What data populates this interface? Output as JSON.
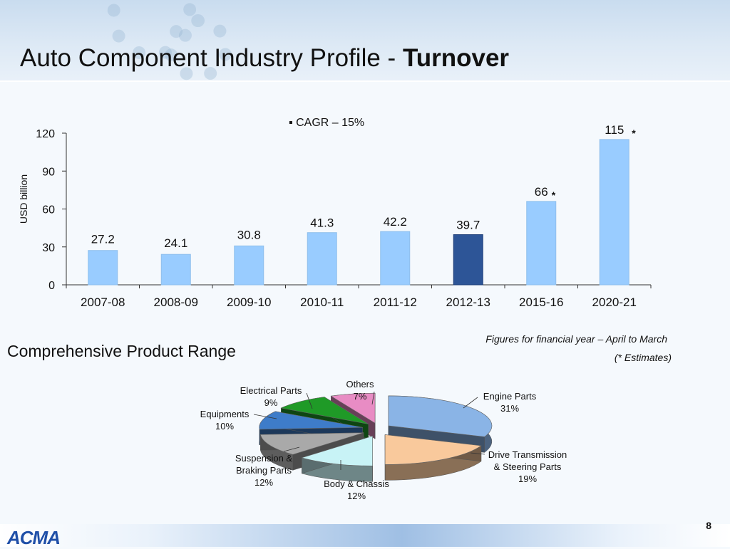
{
  "slide": {
    "title_regular": "Auto Component Industry Profile - ",
    "title_bold": "Turnover",
    "section_title": "Comprehensive Product Range",
    "note_financial_year": "Figures for financial year – April to March",
    "note_estimates": "(* Estimates)",
    "page_number": "8",
    "logo_text": "ACMA"
  },
  "colors": {
    "bar_light": "#99ccff",
    "bar_highlight": "#2d5597",
    "axis": "#333333"
  },
  "chart_data": [
    {
      "type": "bar",
      "categories": [
        "2007-08",
        "2008-09",
        "2009-10",
        "2010-11",
        "2011-12",
        "2012-13",
        "2015-16",
        "2020-21"
      ],
      "values": [
        27.2,
        24.1,
        30.8,
        41.3,
        42.2,
        39.7,
        66,
        115
      ],
      "data_labels": [
        "27.2",
        "24.1",
        "30.8",
        "41.3",
        "42.2",
        "39.7",
        "66",
        "115"
      ],
      "estimate_markers": [
        "",
        "",
        "",
        "",
        "",
        "",
        "*",
        "*"
      ],
      "highlight_index": 5,
      "ylabel": "USD billion",
      "ylim": [
        0,
        120
      ],
      "yticks": [
        0,
        30,
        60,
        90,
        120
      ],
      "annotation": "CAGR – 15%",
      "grid": false
    },
    {
      "type": "pie",
      "slices": [
        {
          "label_lines": [
            "Engine Parts",
            "31%"
          ],
          "value": 31,
          "color": "#8ab4e6"
        },
        {
          "label_lines": [
            "Drive Transmission",
            "& Steering Parts",
            "19%"
          ],
          "value": 19,
          "color": "#f9c99c"
        },
        {
          "label_lines": [
            "Body & Chassis",
            "12%"
          ],
          "value": 12,
          "color": "#c8f3f6"
        },
        {
          "label_lines": [
            "Suspension &",
            "Braking Parts",
            "12%"
          ],
          "value": 12,
          "color": "#a9a9a9"
        },
        {
          "label_lines": [
            "Equipments",
            "10%"
          ],
          "value": 10,
          "color": "#3e7cc9"
        },
        {
          "label_lines": [
            "Electrical Parts",
            "9%"
          ],
          "value": 9,
          "color": "#1f9a27"
        },
        {
          "label_lines": [
            "Others",
            "7%"
          ],
          "value": 7,
          "color": "#e88cc4"
        }
      ]
    }
  ]
}
